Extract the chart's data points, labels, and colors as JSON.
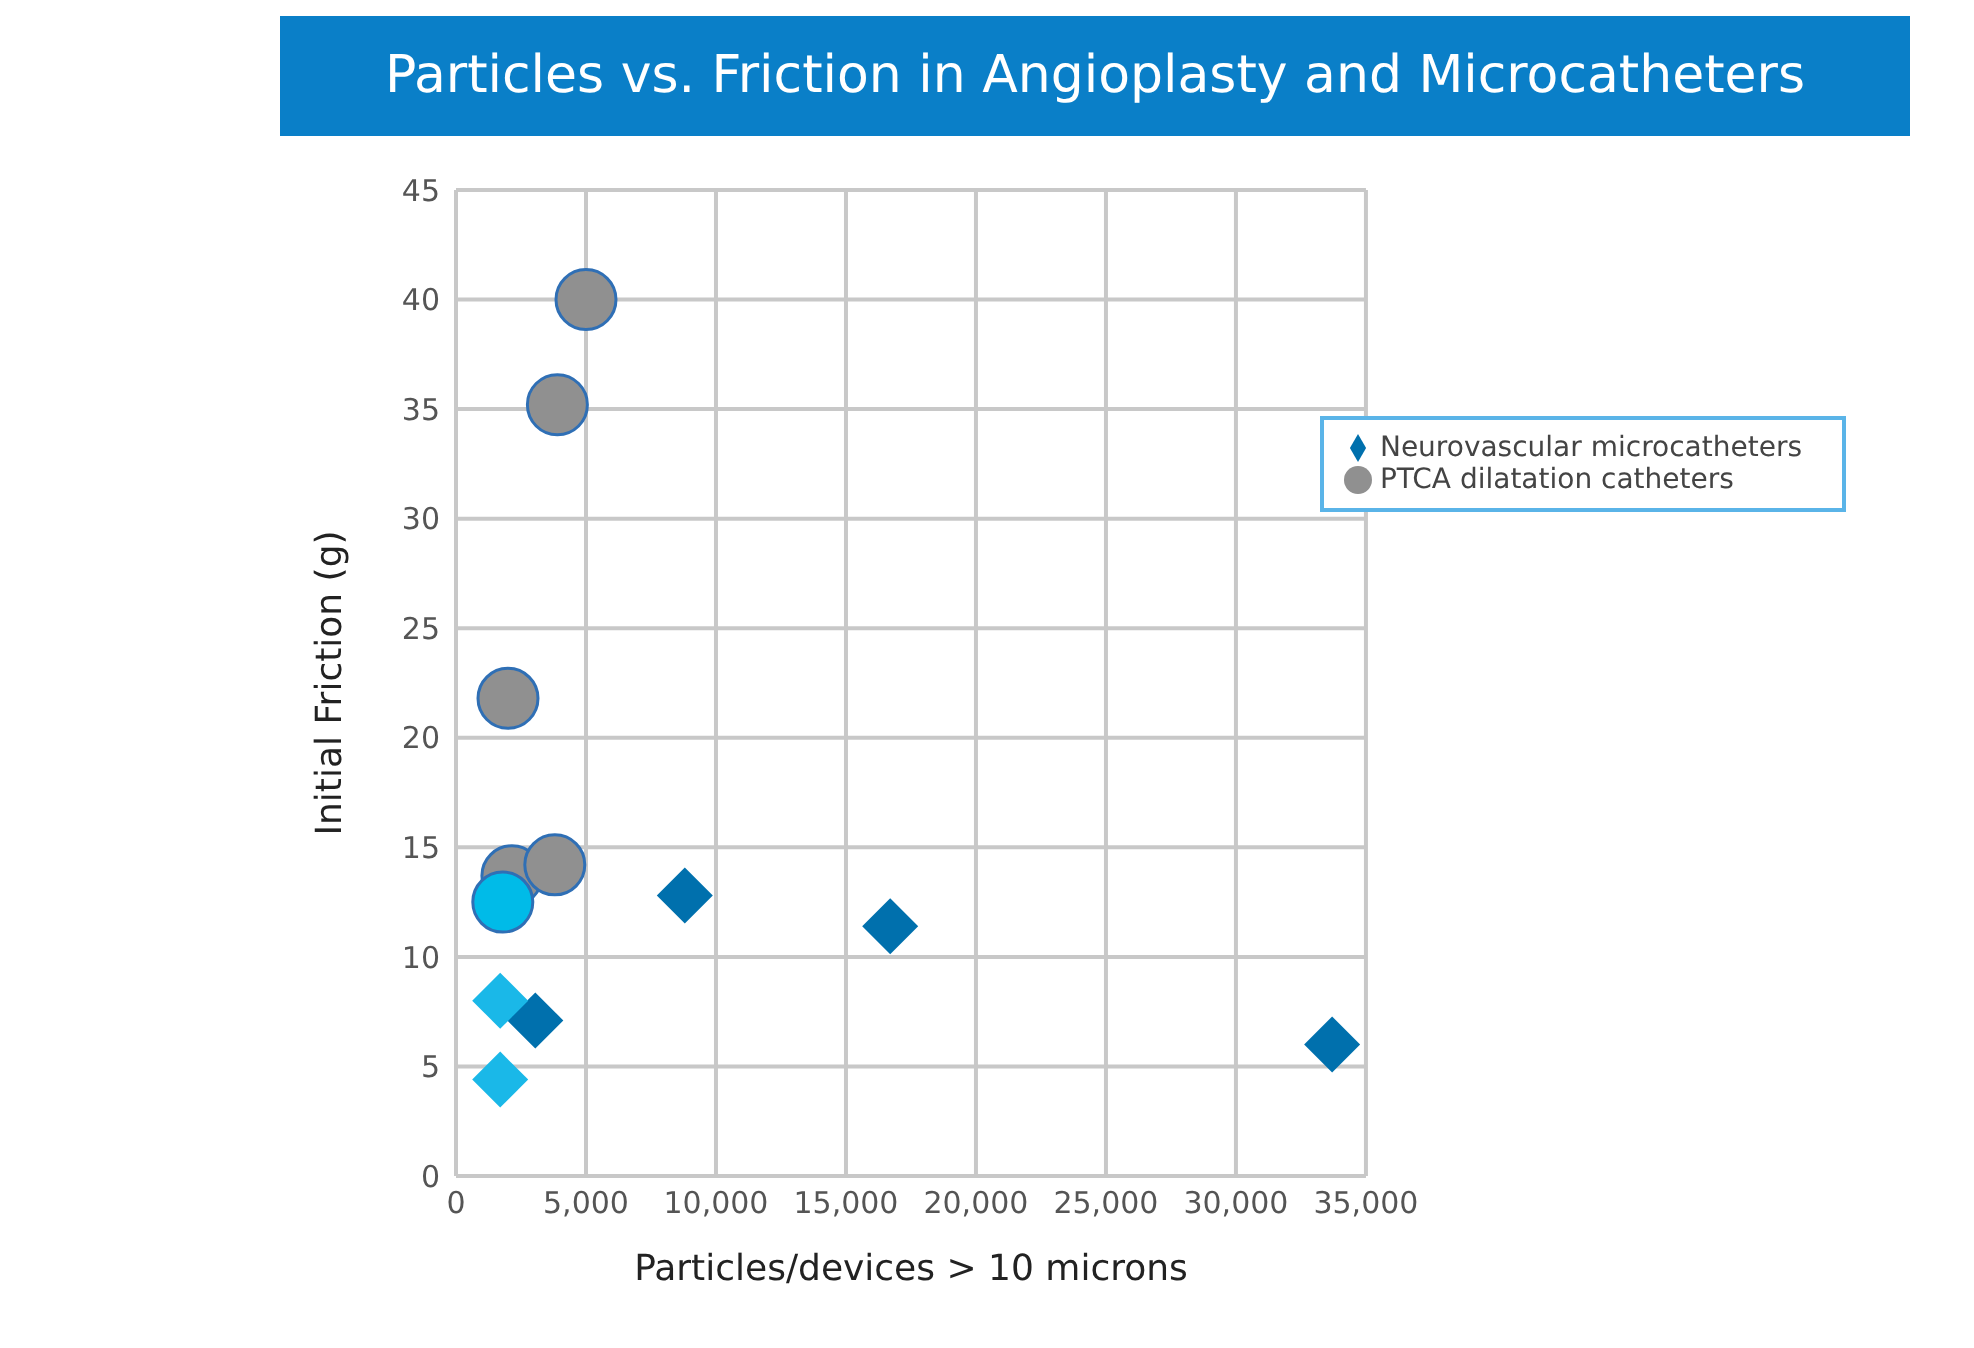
{
  "chart_data": {
    "type": "scatter",
    "title": "Particles vs. Friction in Angioplasty and Microcatheters",
    "xlabel": "Particles/devices > 10 microns",
    "ylabel": "Initial Friction (g)",
    "xlim": [
      0,
      35000
    ],
    "xticks": [
      {
        "value": 0,
        "label": "0"
      },
      {
        "value": 5000,
        "label": "5,000"
      },
      {
        "value": 10000,
        "label": "10,000"
      },
      {
        "value": 15000,
        "label": "15,000"
      },
      {
        "value": 20000,
        "label": "20,000"
      },
      {
        "value": 25000,
        "label": "25,000"
      },
      {
        "value": 30000,
        "label": "30,000"
      },
      {
        "value": 35000,
        "label": "35,000"
      }
    ],
    "ylim": [
      0,
      45
    ],
    "yticks": [
      0,
      5,
      10,
      15,
      20,
      25,
      30,
      35,
      40,
      45
    ],
    "grid": true,
    "legend": "top right",
    "series": [
      {
        "name": "Neurovascular microcatheters",
        "marker": "diamond",
        "color": "#0070ad",
        "x": [
          8800,
          16700,
          33700,
          3050,
          1700,
          1700
        ],
        "values": [
          12.8,
          11.4,
          6,
          7.1,
          8,
          4.4
        ],
        "colors": [
          "#0070ad",
          "#0070ad",
          "#0070ad",
          "#0070ad",
          "#1ab8e8",
          "#1ab8e8"
        ]
      },
      {
        "name": "PTCA dilatation catheters",
        "marker": "circle",
        "color": "#909090",
        "x": [
          5000,
          3900,
          2000,
          2150,
          3800,
          1800
        ],
        "values": [
          40,
          35.2,
          21.8,
          13.7,
          14.2,
          12.5
        ],
        "colors": [
          "#909090",
          "#909090",
          "#909090",
          "#909090",
          "#909090",
          "#00bbe8"
        ]
      }
    ]
  }
}
